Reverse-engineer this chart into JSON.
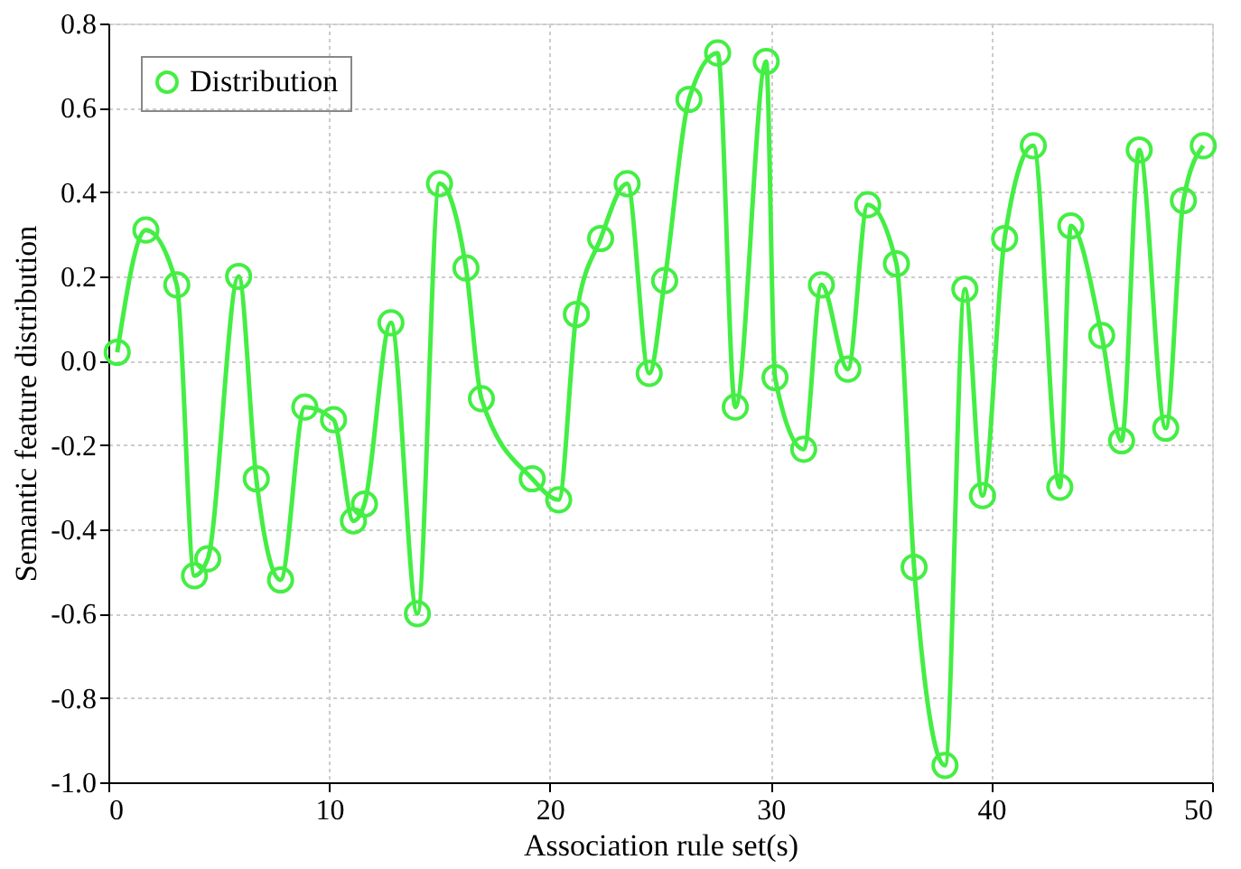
{
  "chart_data": {
    "type": "line",
    "xlabel": "Association rule set(s)",
    "ylabel": "Semantic feature distribution",
    "x": [
      0.4,
      1.7,
      3.1,
      3.9,
      4.5,
      5.9,
      6.7,
      7.8,
      8.9,
      10.2,
      11.1,
      11.6,
      12.8,
      14.0,
      15.0,
      16.2,
      16.9,
      19.2,
      20.4,
      21.2,
      22.3,
      23.5,
      24.5,
      25.2,
      26.3,
      27.6,
      28.4,
      29.8,
      30.2,
      31.5,
      32.3,
      33.5,
      34.4,
      35.7,
      36.5,
      37.9,
      38.8,
      39.6,
      40.6,
      41.9,
      43.1,
      43.6,
      45.0,
      45.9,
      46.7,
      47.9,
      48.7,
      49.6
    ],
    "series": [
      {
        "name": "Distribution",
        "color": "#44ee44",
        "values": [
          0.02,
          0.31,
          0.18,
          -0.51,
          -0.47,
          0.2,
          -0.28,
          -0.52,
          -0.11,
          -0.14,
          -0.38,
          -0.34,
          0.09,
          -0.6,
          0.42,
          0.22,
          -0.09,
          -0.28,
          -0.33,
          0.11,
          0.29,
          0.42,
          -0.03,
          0.19,
          0.62,
          0.73,
          -0.11,
          0.71,
          -0.04,
          -0.21,
          0.18,
          -0.02,
          0.37,
          0.23,
          -0.49,
          -0.96,
          0.17,
          -0.32,
          0.29,
          0.51,
          -0.3,
          0.32,
          0.06,
          -0.19,
          0.5,
          -0.16,
          0.38,
          0.51
        ]
      }
    ],
    "xlim": [
      0,
      50
    ],
    "xticks": [
      0,
      10,
      20,
      30,
      40,
      50
    ],
    "ylim": [
      -1.0,
      0.8
    ],
    "yticks": [
      {
        "value": -1.0,
        "label": "-1.0"
      },
      -0.8,
      -0.6,
      -0.4,
      -0.2,
      {
        "value": 0,
        "label": "0.0"
      },
      0.2,
      0.4,
      0.6,
      0.8
    ],
    "grid": true,
    "legend": "top left",
    "marker": "circle",
    "line_style": "solid"
  }
}
